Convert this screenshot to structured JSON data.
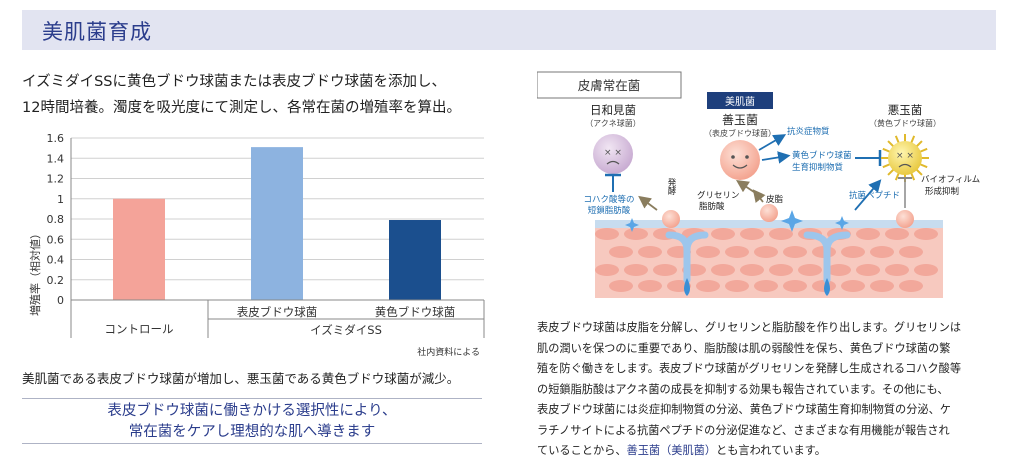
{
  "header": {
    "title": "美肌菌育成"
  },
  "intro": {
    "line1": "イズミダイSSに黄色ブドウ球菌または表皮ブドウ球菌を添加し、",
    "line2": "12時間培養。濁度を吸光度にて測定し、各常在菌の増殖率を算出。"
  },
  "chart_data": {
    "type": "bar",
    "ylabel": "増殖率（相対値）",
    "ylim": [
      0,
      1.6
    ],
    "yticks": [
      "1.6",
      "1.4",
      "1.2",
      "1",
      "0.8",
      "0.6",
      "0.4",
      "0.2",
      "0"
    ],
    "categories": [
      "コントロール",
      "表皮ブドウ球菌",
      "黄色ブドウ球菌"
    ],
    "values": [
      1.0,
      1.51,
      0.79
    ],
    "colors": [
      "#f4a399",
      "#8db3e0",
      "#1b4f8e"
    ],
    "group_label": "イズミダイSS",
    "source": "社内資料による"
  },
  "note": "美肌菌である表皮ブドウ球菌が増加し、悪玉菌である黄色ブドウ球菌が減少。",
  "highlight": {
    "line1": "表皮ブドウ球菌に働きかける選択性により、",
    "line2": "常在菌をケアし理想的な肌へ導きます"
  },
  "illustration": {
    "box_label": "皮膚常在菌",
    "badge": "美肌菌",
    "left": {
      "name": "日和見菌",
      "sub": "（アクネ球菌）"
    },
    "center": {
      "name": "善玉菌",
      "sub": "（表皮ブドウ球菌）"
    },
    "right": {
      "name": "悪玉菌",
      "sub": "（黄色ブドウ球菌）"
    },
    "anti_inflam": "抗炎症物質",
    "inhibit1": "黄色ブドウ球菌",
    "inhibit2": "生育抑制物質",
    "peptide": "抗菌ペプチド",
    "biofilm1": "バイオフィルム",
    "biofilm2": "形成抑制",
    "kohaku1": "コハク酸等の",
    "kohaku2": "短鎖脂肪酸",
    "ferment": "発酵",
    "glycerin1": "グリセリン",
    "glycerin2": "脂肪酸",
    "sebum": "皮脂",
    "colors": {
      "blue": "#1f6fb2",
      "navy": "#1e3f7c"
    }
  },
  "desc": {
    "l1": "表皮ブドウ球菌は皮脂を分解し、グリセリンと脂肪酸を作り出します。グリセリンは",
    "l2": "肌の潤いを保つのに重要であり、脂肪酸は肌の弱酸性を保ち、黄色ブドウ球菌の繁",
    "l3": "殖を防ぐ働きをします。表皮ブドウ球菌がグリセリンを発酵し生成されるコハク酸等",
    "l4": "の短鎖脂肪酸はアクネ菌の成長を抑制する効果も報告されています。その他にも、",
    "l5": "表皮ブドウ球菌には炎症抑制物質の分泌、黄色ブドウ球菌生育抑制物質の分泌、ケ",
    "l6": "ラチノサイトによる抗菌ペプチドの分泌促進など、さまざまな有用機能が報告され",
    "l7a": "ていることから、",
    "l7b": "善玉菌（美肌菌）",
    "l7c": "とも言われています。"
  }
}
